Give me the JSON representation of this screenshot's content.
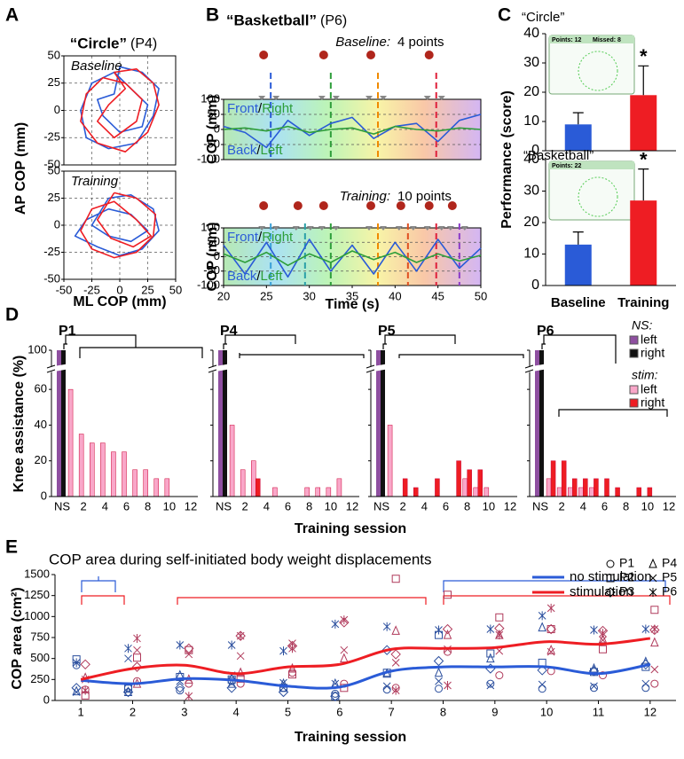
{
  "chart_data": [
    {
      "type": "line",
      "panel": "A",
      "title": "“Circle”",
      "subtitle": "(P4)",
      "xlabel": "ML COP (mm)",
      "ylabel": "AP COP (mm)",
      "xlim": [
        -50,
        50
      ],
      "ylim": [
        -50,
        50
      ],
      "xticks": [
        -50,
        -25,
        0,
        25,
        50
      ],
      "yticks": [
        -50,
        -25,
        0,
        25,
        50
      ],
      "grid": "both",
      "subplots": [
        {
          "label": "Baseline",
          "series": [
            {
              "color": "#2a5bd7",
              "x": [
                0,
                20,
                35,
                30,
                15,
                -10,
                -30,
                -35,
                -25,
                -5,
                10,
                25,
                20,
                0,
                -15,
                -20,
                -5,
                0
              ],
              "y": [
                40,
                35,
                20,
                -5,
                -30,
                -35,
                -25,
                0,
                25,
                35,
                20,
                5,
                -15,
                -20,
                -5,
                10,
                15,
                40
              ]
            },
            {
              "color": "#ee1d23",
              "x": [
                -5,
                15,
                30,
                35,
                25,
                5,
                -20,
                -35,
                -30,
                -15,
                5,
                20,
                15,
                -5,
                -20,
                -10,
                5,
                -5
              ],
              "y": [
                35,
                38,
                25,
                5,
                -20,
                -38,
                -30,
                -10,
                15,
                30,
                25,
                10,
                -10,
                -25,
                -10,
                5,
                20,
                35
              ]
            }
          ]
        },
        {
          "label": "Training",
          "series": [
            {
              "color": "#2a5bd7",
              "x": [
                -10,
                10,
                30,
                35,
                20,
                0,
                -20,
                -40,
                -30,
                -10,
                10,
                25,
                10,
                -10,
                -25,
                -10
              ],
              "y": [
                25,
                28,
                15,
                -5,
                -22,
                -28,
                -20,
                -10,
                5,
                15,
                10,
                -5,
                -15,
                -10,
                0,
                25
              ]
            },
            {
              "color": "#ee1d23",
              "x": [
                -5,
                15,
                32,
                30,
                15,
                -5,
                -25,
                -35,
                -25,
                -5,
                15,
                28,
                12,
                -8,
                -20,
                -5
              ],
              "y": [
                30,
                25,
                10,
                -10,
                -25,
                -30,
                -22,
                -5,
                15,
                22,
                5,
                -10,
                -20,
                -12,
                5,
                30
              ]
            }
          ]
        }
      ]
    },
    {
      "type": "line",
      "panel": "B",
      "title": "“Basketball”",
      "subtitle": "(P6)",
      "xlabel": "Time (s)",
      "ylabel": "COP (mm)",
      "xlim": [
        20,
        50
      ],
      "ylim": [
        -100,
        100
      ],
      "xticks": [
        20,
        25,
        30,
        35,
        40,
        45,
        50
      ],
      "yticks": [
        -100,
        -50,
        0,
        50,
        100
      ],
      "grid": "y",
      "gradient": true,
      "trace_labels": {
        "top": [
          "Front",
          "/",
          "Right"
        ],
        "bottom": [
          "Back",
          "/",
          "Left"
        ]
      },
      "subplots": [
        {
          "label": "Baseline:",
          "score": "4 points",
          "events": [
            25.5,
            32.5,
            38,
            44.8
          ],
          "event_colors": [
            "#2a5bd7",
            "#2e9e3a",
            "#f08a00",
            "#e0203a"
          ],
          "series": [
            {
              "color": "#2a5bd7",
              "x": [
                20,
                22.5,
                25,
                27.5,
                30,
                32.5,
                35,
                37.5,
                40,
                42.5,
                45,
                47.5,
                50
              ],
              "y": [
                10,
                -10,
                -60,
                30,
                -20,
                20,
                40,
                -30,
                10,
                20,
                -40,
                30,
                50
              ]
            },
            {
              "color": "#2e9e3a",
              "x": [
                20,
                22.5,
                25,
                27.5,
                30,
                32.5,
                35,
                37.5,
                40,
                42.5,
                45,
                47.5,
                50
              ],
              "y": [
                0,
                5,
                -5,
                10,
                -10,
                0,
                5,
                -15,
                10,
                0,
                -5,
                5,
                0
              ]
            }
          ]
        },
        {
          "label": "Training:",
          "score": "10 points",
          "events": [
            25.5,
            29.5,
            32.5,
            38,
            41.5,
            44.8,
            47.5
          ],
          "event_colors": [
            "#3aa0d8",
            "#2aa0a8",
            "#2e9e3a",
            "#f08a00",
            "#e05020",
            "#e0203a",
            "#8a3ac8"
          ],
          "series": [
            {
              "color": "#2a5bd7",
              "x": [
                20,
                22.5,
                25,
                27.5,
                30,
                32.5,
                35,
                37.5,
                40,
                42.5,
                45,
                47.5,
                50
              ],
              "y": [
                40,
                -60,
                50,
                -70,
                60,
                -50,
                40,
                -60,
                50,
                -50,
                60,
                -40,
                30
              ]
            },
            {
              "color": "#2e9e3a",
              "x": [
                20,
                22.5,
                25,
                27.5,
                30,
                32.5,
                35,
                37.5,
                40,
                42.5,
                45,
                47.5,
                50
              ],
              "y": [
                10,
                -20,
                15,
                -30,
                10,
                -20,
                20,
                -10,
                15,
                -20,
                10,
                -15,
                5
              ]
            }
          ]
        }
      ]
    },
    {
      "type": "bar",
      "panel": "C",
      "ylabel": "Performance (score)",
      "categories": [
        "Baseline",
        "Training"
      ],
      "colors": [
        "#2a5bd7",
        "#ee1d23"
      ],
      "ylim": [
        0,
        40
      ],
      "yticks": [
        0,
        10,
        20,
        30,
        40
      ],
      "subplots": [
        {
          "title": "“Circle”",
          "values": [
            9,
            19
          ],
          "errors": [
            4,
            10
          ],
          "annotation": "*",
          "inset": [
            "Points: 12",
            "Missed: 8"
          ]
        },
        {
          "title": "“Basketball”",
          "values": [
            13,
            27
          ],
          "errors": [
            4,
            10
          ],
          "annotation": "*",
          "inset": [
            "Points: 22"
          ]
        }
      ]
    },
    {
      "type": "bar",
      "panel": "D",
      "ylabel": "Knee assistance (%)",
      "xlabel": "Training session",
      "categories": [
        "NS",
        null,
        "2",
        null,
        "4",
        null,
        "6",
        null,
        "8",
        null,
        "10",
        null,
        "12"
      ],
      "ylim": [
        0,
        100
      ],
      "yticks": [
        0,
        20,
        40,
        60,
        100
      ],
      "legend_groups": [
        {
          "title": "NS:",
          "series": [
            {
              "name": "left",
              "color": "#8e4fa0"
            },
            {
              "name": "right",
              "color": "#111111"
            }
          ]
        },
        {
          "title": "stim:",
          "series": [
            {
              "name": "left",
              "color": "#f9a7c9"
            },
            {
              "name": "right",
              "color": "#ee1d23"
            }
          ]
        }
      ],
      "subplots": [
        {
          "title": "P1",
          "ns": [
            100,
            100
          ],
          "stim": [
            [
              60,
              35,
              30,
              30,
              25,
              25,
              15,
              15,
              10,
              10,
              0,
              0
            ],
            [
              0,
              0,
              0,
              0,
              0,
              0,
              0,
              0,
              0,
              0,
              0,
              0
            ]
          ]
        },
        {
          "title": "P4",
          "ns": [
            100,
            100
          ],
          "stim": [
            [
              40,
              15,
              20,
              0,
              5,
              0,
              0,
              5,
              5,
              5,
              10,
              0
            ],
            [
              0,
              0,
              10,
              0,
              0,
              0,
              0,
              0,
              0,
              0,
              0,
              0
            ]
          ]
        },
        {
          "title": "P5",
          "ns": [
            100,
            100
          ],
          "stim": [
            [
              40,
              0,
              0,
              0,
              0,
              0,
              0,
              10,
              5,
              5,
              0,
              0
            ],
            [
              0,
              10,
              5,
              0,
              10,
              0,
              20,
              15,
              15,
              0,
              0,
              0
            ]
          ]
        },
        {
          "title": "P6",
          "ns": [
            100,
            100
          ],
          "stim": [
            [
              10,
              5,
              5,
              5,
              5,
              0,
              0,
              0,
              0,
              0,
              0,
              0
            ],
            [
              20,
              20,
              10,
              10,
              10,
              10,
              5,
              0,
              5,
              5,
              0,
              0
            ]
          ]
        }
      ]
    },
    {
      "type": "scatter",
      "panel": "E",
      "title": "COP area during self-initiated body weight displacements",
      "ylabel": "COP area (cm²)",
      "xlabel": "Training session",
      "xlim": [
        0.5,
        12.5
      ],
      "xticks": [
        1,
        2,
        3,
        4,
        5,
        6,
        7,
        8,
        9,
        10,
        11,
        12
      ],
      "ylim": [
        0,
        1500
      ],
      "yticks": [
        0,
        250,
        500,
        750,
        1000,
        1250,
        1500
      ],
      "participants": [
        {
          "name": "P1",
          "marker": "circle"
        },
        {
          "name": "P2",
          "marker": "square"
        },
        {
          "name": "P3",
          "marker": "diamond"
        },
        {
          "name": "P4",
          "marker": "triangle"
        },
        {
          "name": "P5",
          "marker": "x"
        },
        {
          "name": "P6",
          "marker": "asterisk"
        }
      ],
      "conditions": [
        {
          "name": "no stimulation",
          "color": "#2a5bd7",
          "point_color": "#2b4f9e",
          "mean": [
            240,
            200,
            260,
            240,
            170,
            160,
            350,
            400,
            400,
            400,
            320,
            430
          ],
          "values": [
            [
              420,
              150,
              120,
              230,
              150,
              80,
              130,
              140,
              200,
              140,
              150,
              150
            ],
            [
              490,
              140,
              280,
              250,
              150,
              50,
              330,
              780,
              560,
              450,
              340,
              400
            ],
            [
              150,
              100,
              150,
              150,
              100,
              50,
              600,
              470,
              380,
              360,
              350,
              430
            ],
            [
              110,
              100,
              300,
              200,
              200,
              200,
              320,
              330,
              500,
              870,
              380,
              460
            ],
            [
              100,
              500,
              230,
              300,
              210,
              200,
              170,
              230,
              180,
              190,
              170,
              200
            ],
            [
              450,
              620,
              660,
              660,
              590,
              910,
              880,
              840,
              850,
              1010,
              840,
              850
            ]
          ]
        },
        {
          "name": "stimulation",
          "color": "#ee1d23",
          "point_color": "#b03a5b",
          "mean": [
            250,
            380,
            420,
            320,
            400,
            430,
            610,
            620,
            630,
            700,
            670,
            740
          ],
          "values": [
            [
              130,
              230,
              200,
              200,
              330,
              200,
              150,
              580,
              300,
              350,
              300,
              200
            ],
            [
              60,
              510,
              600,
              260,
              310,
              150,
              1450,
              1260,
              990,
              850,
              610,
              1080
            ],
            [
              430,
              400,
              620,
              770,
              650,
              930,
              550,
              850,
              860,
              850,
              830,
              840
            ],
            [
              270,
              200,
              250,
              330,
              380,
              500,
              830,
              780,
              780,
              600,
              730,
              690
            ],
            [
              250,
              600,
              550,
              530,
              680,
              600,
              450,
              610,
              590,
              580,
              720,
              370
            ],
            [
              120,
              740,
              50,
              770,
              620,
              960,
              120,
              180,
              780,
              1100,
              800,
              850
            ]
          ]
        }
      ]
    }
  ]
}
